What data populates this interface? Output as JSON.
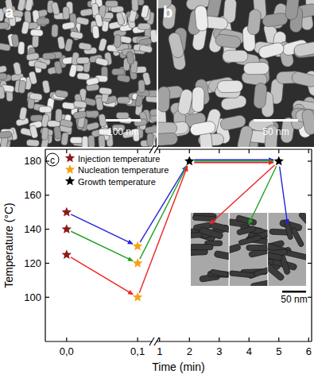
{
  "figure": {
    "panels": [
      {
        "label": "a",
        "scale_bar": "100 nm"
      },
      {
        "label": "b",
        "scale_bar": "50 nm"
      },
      {
        "label": "c"
      }
    ],
    "inset_scale_bar": "50 nm"
  },
  "chart_data": {
    "type": "scatter",
    "x_label": "Time (min)",
    "y_label": "Temperature (°C)",
    "xlim": [
      -0.03,
      6.1
    ],
    "x_break": [
      0.12,
      0.9
    ],
    "xticks": [
      {
        "value": 0,
        "label": "0,0"
      },
      {
        "value": 0.1,
        "label": "0,1"
      },
      1,
      2,
      3,
      4,
      5,
      6
    ],
    "ylim": [
      74,
      187
    ],
    "yticks": [
      100,
      120,
      140,
      160,
      180
    ],
    "grid": false,
    "legend": "upper left",
    "marker": "star",
    "series": [
      {
        "name": "Injection temperature",
        "color": "#8b1a1a",
        "x": [
          0,
          0,
          0
        ],
        "values": [
          150,
          140,
          125
        ]
      },
      {
        "name": "Nucleation temperature",
        "color": "#f5a21b",
        "x": [
          0.1,
          0.1,
          0.1
        ],
        "values": [
          130,
          120,
          100
        ]
      },
      {
        "name": "Growth temperature",
        "color": "#000000",
        "x": [
          2,
          5
        ],
        "values": [
          180,
          180
        ]
      }
    ],
    "routes": [
      {
        "color": "#2323d8",
        "x": [
          0,
          0.1,
          2,
          5
        ],
        "y": [
          150,
          130,
          180,
          180
        ]
      },
      {
        "color": "#22a022",
        "x": [
          0,
          0.1,
          2,
          5
        ],
        "y": [
          140,
          120,
          180,
          180
        ]
      },
      {
        "color": "#ee2222",
        "x": [
          0,
          0.1,
          2,
          5
        ],
        "y": [
          125,
          100,
          180,
          180
        ]
      }
    ]
  }
}
